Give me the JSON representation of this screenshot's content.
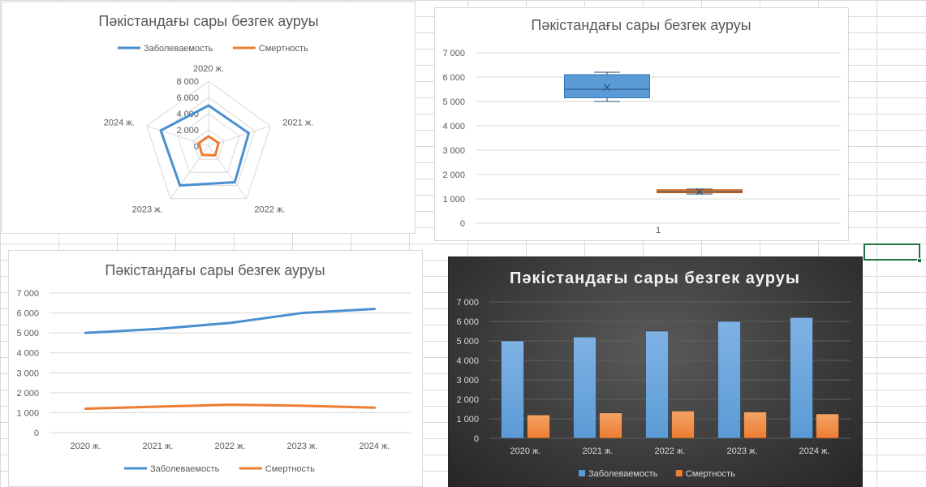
{
  "sheet": {
    "selected_cell_color": "#217346"
  },
  "chart_data": [
    {
      "type": "radar",
      "title": "Пәкістандағы сары безгек ауруы",
      "categories": [
        "2020 ж.",
        "2021 ж.",
        "2022 ж.",
        "2023 ж.",
        "2024 ж."
      ],
      "series": [
        {
          "name": "Заболеваемость",
          "values": [
            5000,
            5200,
            5500,
            6000,
            6200
          ],
          "color": "#4a90d0"
        },
        {
          "name": "Смертность",
          "values": [
            1200,
            1300,
            1400,
            1350,
            1250
          ],
          "color": "#ed7d31"
        }
      ],
      "radial_ticks": [
        "0",
        "2 000",
        "4 000",
        "6 000",
        "8 000"
      ],
      "rmax": 8000,
      "legend": "top"
    },
    {
      "type": "box",
      "title": "Пәкістандағы сары безгек ауруы",
      "categories": [
        "1"
      ],
      "series": [
        {
          "name": "Заболеваемость",
          "color": "#5b9bd5",
          "stats": {
            "min": 5000,
            "q1": 5150,
            "median": 5500,
            "q3": 6100,
            "max": 6200,
            "mean": 5580
          }
        },
        {
          "name": "Смертность",
          "color": "#ed7d31",
          "stats": {
            "min": 1200,
            "q1": 1250,
            "median": 1300,
            "q3": 1375,
            "max": 1400,
            "mean": 1300
          }
        }
      ],
      "y_ticks": [
        "0",
        "1 000",
        "2 000",
        "3 000",
        "4 000",
        "5 000",
        "6 000",
        "7 000"
      ],
      "ylim": [
        0,
        7000
      ],
      "grid": true
    },
    {
      "type": "line",
      "title": "Пәкістандағы сары безгек ауруы",
      "categories": [
        "2020 ж.",
        "2021 ж.",
        "2022 ж.",
        "2023 ж.",
        "2024 ж."
      ],
      "series": [
        {
          "name": "Заболеваемость",
          "values": [
            5000,
            5200,
            5500,
            6000,
            6200
          ],
          "color": "#4a90d0"
        },
        {
          "name": "Смертность",
          "values": [
            1200,
            1300,
            1400,
            1350,
            1250
          ],
          "color": "#ed7d31"
        }
      ],
      "y_ticks": [
        "0",
        "1 000",
        "2 000",
        "3 000",
        "4 000",
        "5 000",
        "6 000",
        "7 000"
      ],
      "ylim": [
        0,
        7000
      ],
      "grid": true,
      "legend": "bottom"
    },
    {
      "type": "bar",
      "title": "Пәкістандағы сары безгек ауруы",
      "categories": [
        "2020 ж.",
        "2021 ж.",
        "2022 ж.",
        "2023 ж.",
        "2024 ж."
      ],
      "series": [
        {
          "name": "Заболеваемость",
          "values": [
            5000,
            5200,
            5500,
            6000,
            6200
          ],
          "color": "#5b9bd5"
        },
        {
          "name": "Смертность",
          "values": [
            1200,
            1300,
            1400,
            1350,
            1250
          ],
          "color": "#ed7d31"
        }
      ],
      "y_ticks": [
        "0",
        "1 000",
        "2 000",
        "3 000",
        "4 000",
        "5 000",
        "6 000",
        "7 000"
      ],
      "ylim": [
        0,
        7000
      ],
      "grid": true,
      "legend": "bottom"
    }
  ]
}
